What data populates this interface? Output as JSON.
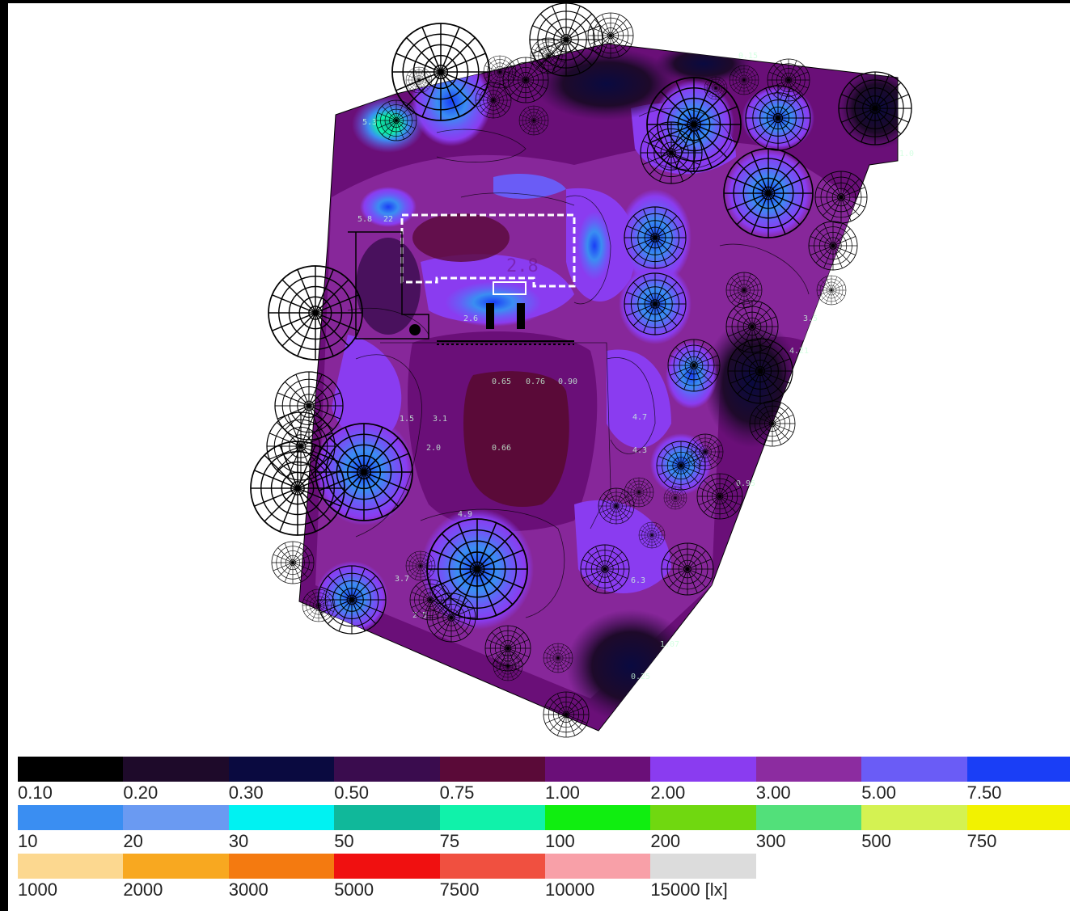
{
  "legend": {
    "rows": [
      [
        {
          "label": "0.10",
          "color": "#000000"
        },
        {
          "label": "0.20",
          "color": "#1e0a2a"
        },
        {
          "label": "0.30",
          "color": "#0a0a40"
        },
        {
          "label": "0.50",
          "color": "#3a0c4e"
        },
        {
          "label": "0.75",
          "color": "#5a0a38"
        },
        {
          "label": "1.00",
          "color": "#6a0f78"
        },
        {
          "label": "2.00",
          "color": "#8a3cf0"
        },
        {
          "label": "3.00",
          "color": "#8c2ca0"
        },
        {
          "label": "5.00",
          "color": "#6a5cf6"
        },
        {
          "label": "7.50",
          "color": "#1a3ef6"
        }
      ],
      [
        {
          "label": "10",
          "color": "#3a8ef2"
        },
        {
          "label": "20",
          "color": "#6a9af2"
        },
        {
          "label": "30",
          "color": "#00f2f2"
        },
        {
          "label": "50",
          "color": "#10b89a"
        },
        {
          "label": "75",
          "color": "#10f2aa"
        },
        {
          "label": "100",
          "color": "#10ee10"
        },
        {
          "label": "200",
          "color": "#70d810"
        },
        {
          "label": "300",
          "color": "#52e07a"
        },
        {
          "label": "500",
          "color": "#d4f252"
        },
        {
          "label": "750",
          "color": "#f2f200"
        }
      ],
      [
        {
          "label": "1000",
          "color": "#fcd890"
        },
        {
          "label": "2000",
          "color": "#f8a820"
        },
        {
          "label": "3000",
          "color": "#f47a10"
        },
        {
          "label": "5000",
          "color": "#f01010"
        },
        {
          "label": "7500",
          "color": "#f05040"
        },
        {
          "label": "10000",
          "color": "#f8a0a8"
        },
        {
          "label": "15000 [lx]",
          "color": "#dcdcdc"
        }
      ]
    ]
  },
  "plan": {
    "value_labels": [
      "5.3",
      "5.8",
      "22",
      "2.8",
      "2.0",
      "2.6",
      "3.1",
      "3.5",
      "4.21",
      "0.65",
      "0.76",
      "0.66",
      "0.90",
      "1.07",
      "3.7",
      "2.5",
      "4.9",
      "1.5",
      "0.25",
      "0.95",
      "6.3",
      "4.7",
      "4.3",
      "1.0",
      "0.15"
    ]
  }
}
